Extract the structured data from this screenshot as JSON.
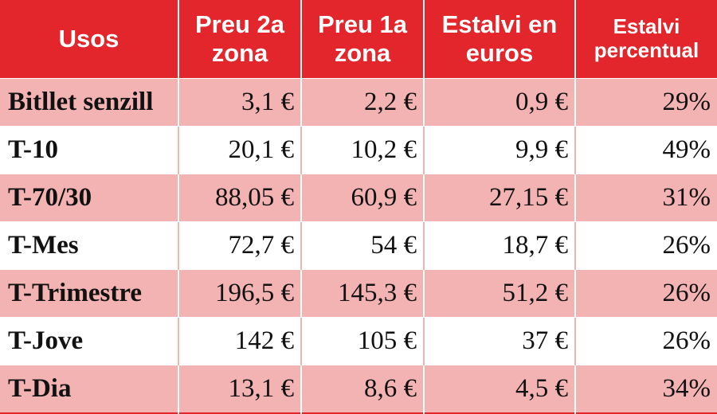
{
  "chart_data": {
    "type": "table",
    "columns": [
      "Usos",
      "Preu 2a zona",
      "Preu 1a zona",
      "Estalvi en euros",
      "Estalvi percentual"
    ],
    "rows": [
      {
        "uso": "Bitllet senzill",
        "preu2": "3,1 €",
        "preu1": "2,2 €",
        "estalvi": "0,9 €",
        "pct": "29%"
      },
      {
        "uso": "T-10",
        "preu2": "20,1 €",
        "preu1": "10,2 €",
        "estalvi": "9,9 €",
        "pct": "49%"
      },
      {
        "uso": "T-70/30",
        "preu2": "88,05 €",
        "preu1": "60,9 €",
        "estalvi": "27,15 €",
        "pct": "31%"
      },
      {
        "uso": "T-Mes",
        "preu2": "72,7 €",
        "preu1": "54 €",
        "estalvi": "18,7 €",
        "pct": "26%"
      },
      {
        "uso": "T-Trimestre",
        "preu2": "196,5 €",
        "preu1": "145,3 €",
        "estalvi": "51,2 €",
        "pct": "26%"
      },
      {
        "uso": "T-Jove",
        "preu2": "142 €",
        "preu1": "105 €",
        "estalvi": "37 €",
        "pct": "26%"
      },
      {
        "uso": "T-Dia",
        "preu2": "13,1 €",
        "preu1": "8,6 €",
        "estalvi": "4,5 €",
        "pct": "34%"
      }
    ]
  },
  "colors": {
    "header_bg": "#e3262b",
    "header_text": "#ffffff",
    "shaded_row": "#f4b3b3",
    "plain_row": "#ffffff"
  }
}
